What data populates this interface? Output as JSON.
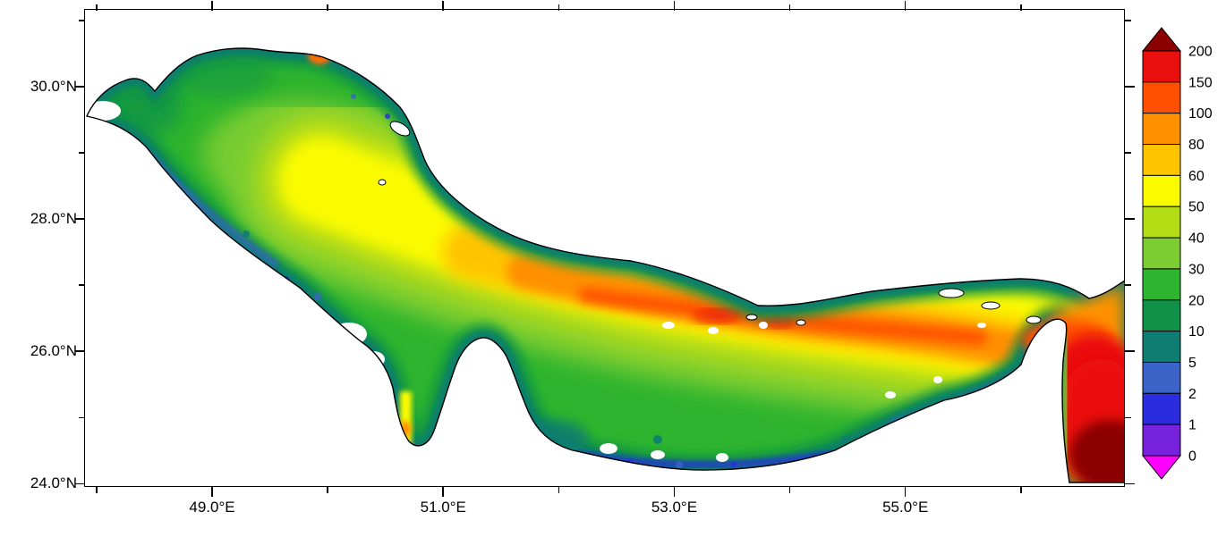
{
  "figure": {
    "title": "",
    "background_color": "#ffffff",
    "frame_color": "#000000"
  },
  "x_axis": {
    "min": 47.9,
    "max": 56.9,
    "ticks": [
      {
        "value": 48,
        "label": ""
      },
      {
        "value": 49,
        "label": "49.0°E"
      },
      {
        "value": 50,
        "label": ""
      },
      {
        "value": 51,
        "label": "51.0°E"
      },
      {
        "value": 52,
        "label": ""
      },
      {
        "value": 53,
        "label": "53.0°E"
      },
      {
        "value": 54,
        "label": ""
      },
      {
        "value": 55,
        "label": "55.0°E"
      },
      {
        "value": 56,
        "label": ""
      }
    ]
  },
  "y_axis": {
    "min": 23.95,
    "max": 31.15,
    "ticks": [
      {
        "value": 24,
        "label": "24.0°N"
      },
      {
        "value": 25,
        "label": ""
      },
      {
        "value": 26,
        "label": "26.0°N"
      },
      {
        "value": 27,
        "label": ""
      },
      {
        "value": 28,
        "label": "28.0°N"
      },
      {
        "value": 29,
        "label": ""
      },
      {
        "value": 30,
        "label": "30.0°N"
      },
      {
        "value": 31,
        "label": ""
      }
    ]
  },
  "colorbar": {
    "boundary_labels": [
      "200",
      "150",
      "100",
      "80",
      "60",
      "50",
      "40",
      "30",
      "20",
      "10",
      "5",
      "2",
      "1",
      "0"
    ],
    "segment_colors_top_to_bottom": [
      "#ea1010",
      "#ff5000",
      "#ff9000",
      "#ffc400",
      "#fbfb00",
      "#b4dc14",
      "#7ccd31",
      "#2eb42e",
      "#0f9148",
      "#0e7d72",
      "#3c64c8",
      "#2b2be0",
      "#7722dd"
    ],
    "over_arrow_color": "#8c0000",
    "under_arrow_color": "#ff00ff"
  },
  "chart_data": {
    "type": "heatmap",
    "title": "",
    "region": "Persian Gulf, Strait of Hormuz and northwestern Gulf of Oman",
    "projection": "lat-lon axes, filled raster field over sea, land masked white",
    "xlabel": "",
    "ylabel": "",
    "x_tick_labels": [
      "49.0°E",
      "51.0°E",
      "53.0°E",
      "55.0°E"
    ],
    "y_tick_labels": [
      "24.0°N",
      "26.0°N",
      "28.0°N",
      "30.0°N"
    ],
    "xlim_deg_east": [
      47.9,
      56.9
    ],
    "ylim_deg_north": [
      23.95,
      31.15
    ],
    "color_levels": [
      0,
      1,
      2,
      5,
      10,
      20,
      30,
      40,
      50,
      60,
      80,
      100,
      150,
      200
    ],
    "colorbar_has_over_under_arrows": true,
    "pattern_notes": [
      "Maximum values (>150, dark red) fill the Gulf of Oman in the southeastern corner of the map",
      "High values (80-150, orange to red band) run along the central axis of the eastern gulf toward the Strait of Hormuz, roughly 52E-56E near 26N-27N",
      "Yellow band (50-80) along the central northwestern gulf axis from about 49.5E,28.5N to 52E,27N",
      "Broad green field (10-40) over most of the basin",
      "Low values (0-10, teal and blue fringe) along almost all coastlines, south of Qatar and in the northwestern shallows",
      "Small orange-red hotspot on the northern coast near 49.9E,30.6N and a yellow-orange strip in the Gulf of Salwa west of Qatar",
      "Scattered white patches (no data) near Bahrain, along the southern coast, and small white islands near the Iranian coast"
    ]
  }
}
